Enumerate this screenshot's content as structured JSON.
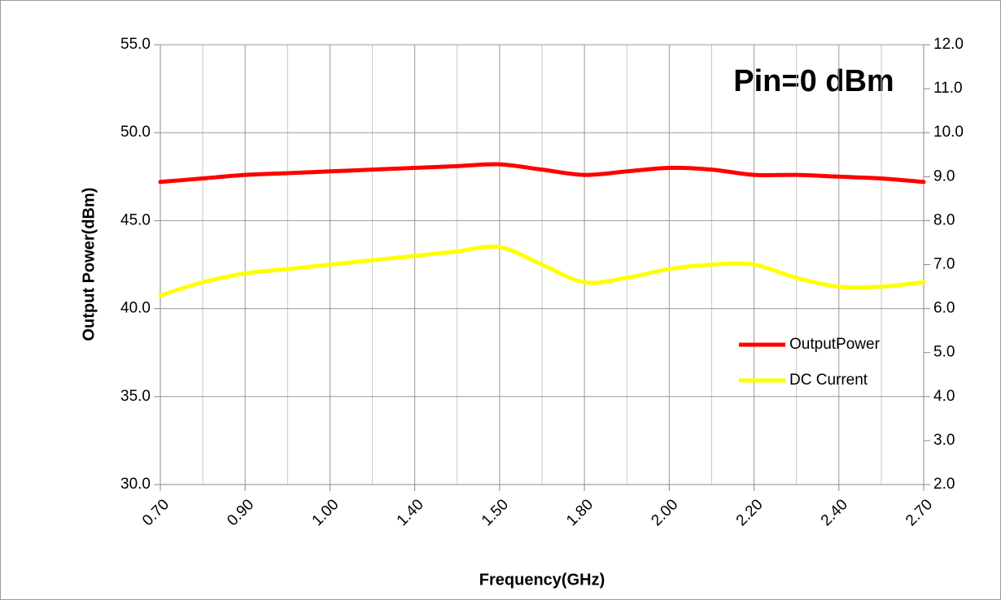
{
  "chart_data": {
    "type": "line",
    "annotation": "Pin=0 dBm",
    "xlabel": "Frequency(GHz)",
    "ylabel": "Output Power(dBm)",
    "categories": [
      "0.70",
      null,
      "0.90",
      null,
      "1.00",
      null,
      "1.40",
      null,
      "1.50",
      null,
      "1.80",
      null,
      "2.00",
      null,
      "2.20",
      null,
      "2.40",
      null,
      "2.70"
    ],
    "series": [
      {
        "name": "OutputPower",
        "color": "#ff0000",
        "axis": "y",
        "values": [
          47.2,
          47.4,
          47.6,
          47.7,
          47.8,
          47.9,
          48.0,
          48.1,
          48.2,
          47.9,
          47.6,
          47.8,
          48.0,
          47.9,
          47.6,
          47.6,
          47.5,
          47.4,
          47.2
        ]
      },
      {
        "name": "DC Current",
        "color": "#ffff00",
        "axis": "y2",
        "values": [
          6.3,
          6.6,
          6.8,
          6.9,
          7.0,
          7.1,
          7.2,
          7.3,
          7.4,
          7.0,
          6.6,
          6.7,
          6.9,
          7.0,
          7.0,
          6.7,
          6.5,
          6.5,
          6.6
        ]
      }
    ],
    "ylim": [
      30,
      55
    ],
    "yticks": [
      {
        "value": 30,
        "label": "30.0"
      },
      {
        "value": 35,
        "label": "35.0"
      },
      {
        "value": 40,
        "label": "40.0"
      },
      {
        "value": 45,
        "label": "45.0"
      },
      {
        "value": 50,
        "label": "50.0"
      },
      {
        "value": 55,
        "label": "55.0"
      }
    ],
    "y2lim": [
      2,
      12
    ],
    "y2ticks": [
      {
        "value": 2,
        "label": "2.0"
      },
      {
        "value": 3,
        "label": "3.0"
      },
      {
        "value": 4,
        "label": "4.0"
      },
      {
        "value": 5,
        "label": "5.0"
      },
      {
        "value": 6,
        "label": "6.0"
      },
      {
        "value": 7,
        "label": "7.0"
      },
      {
        "value": 8,
        "label": "8.0"
      },
      {
        "value": 9,
        "label": "9.0"
      },
      {
        "value": 10,
        "label": "10.0"
      },
      {
        "value": 11,
        "label": "11.0"
      },
      {
        "value": 12,
        "label": "12.0"
      }
    ],
    "grid": true
  }
}
